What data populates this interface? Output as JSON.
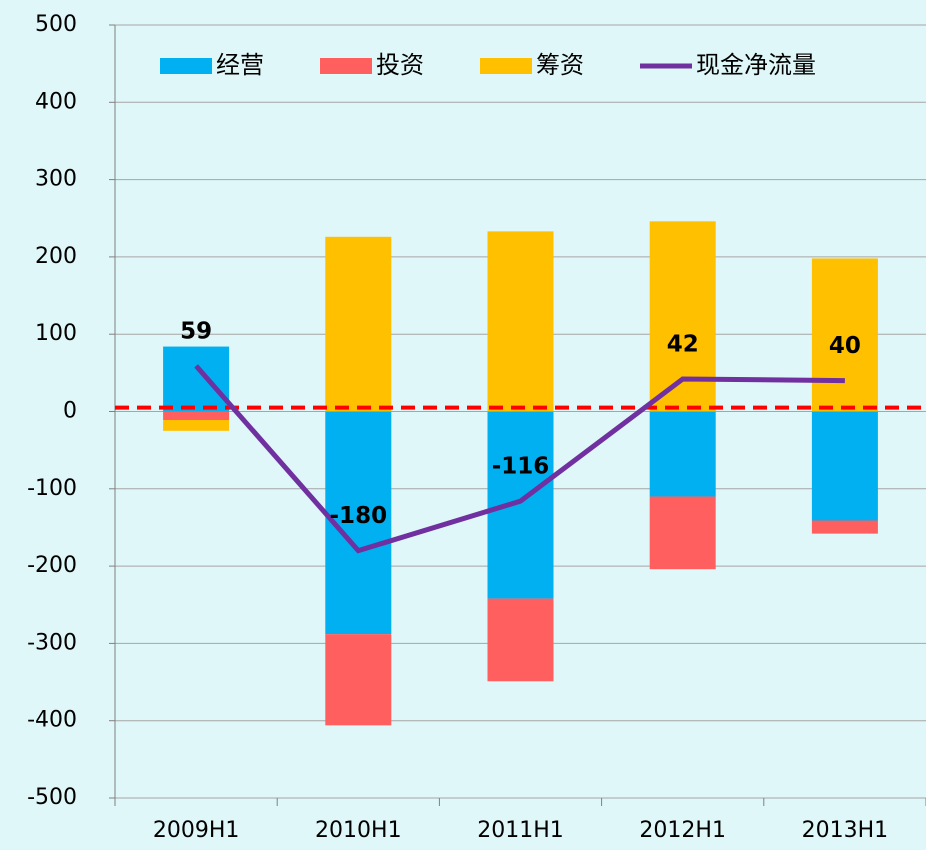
{
  "chart_data": {
    "type": "bar",
    "stacked": true,
    "categories": [
      "2009H1",
      "2010H1",
      "2011H1",
      "2012H1",
      "2013H1"
    ],
    "series": [
      {
        "name": "经营",
        "color": "#00b0f0",
        "values": [
          84,
          -288,
          -242,
          -110,
          -141
        ]
      },
      {
        "name": "投资",
        "color": "#ff5f5f",
        "values": [
          -11,
          -118,
          -107,
          -94,
          -17
        ]
      },
      {
        "name": "筹资",
        "color": "#ffc000",
        "values": [
          -14,
          226,
          233,
          246,
          198
        ]
      },
      {
        "name": "现金净流量",
        "color": "#7030a0",
        "type": "line",
        "values": [
          59,
          -180,
          -116,
          42,
          40
        ],
        "data_labels": true
      }
    ],
    "reference_line": {
      "value": 5,
      "color": "#ff0000",
      "style": "dashed"
    },
    "ylim": [
      -500,
      500
    ],
    "yticks": [
      -500,
      -400,
      -300,
      -200,
      -100,
      0,
      100,
      200,
      300,
      400,
      500
    ],
    "grid": true,
    "legend": "top"
  }
}
